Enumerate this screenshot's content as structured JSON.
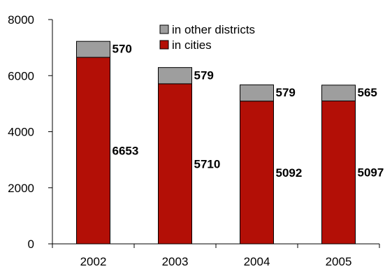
{
  "chart_data": {
    "type": "bar",
    "stacked": true,
    "categories": [
      "2002",
      "2003",
      "2004",
      "2005"
    ],
    "series": [
      {
        "name": "in cities",
        "values": [
          6653,
          5710,
          5092,
          5097
        ],
        "color": "#b30f06"
      },
      {
        "name": "in other districts",
        "values": [
          570,
          579,
          579,
          565
        ],
        "color": "#9e9e9e"
      }
    ],
    "ylim": [
      0,
      8000
    ],
    "yticks": [
      "0",
      "2000",
      "4000",
      "6000",
      "8000"
    ],
    "legend_position": "top-right",
    "grid": false,
    "title": "",
    "xlabel": "",
    "ylabel": ""
  }
}
